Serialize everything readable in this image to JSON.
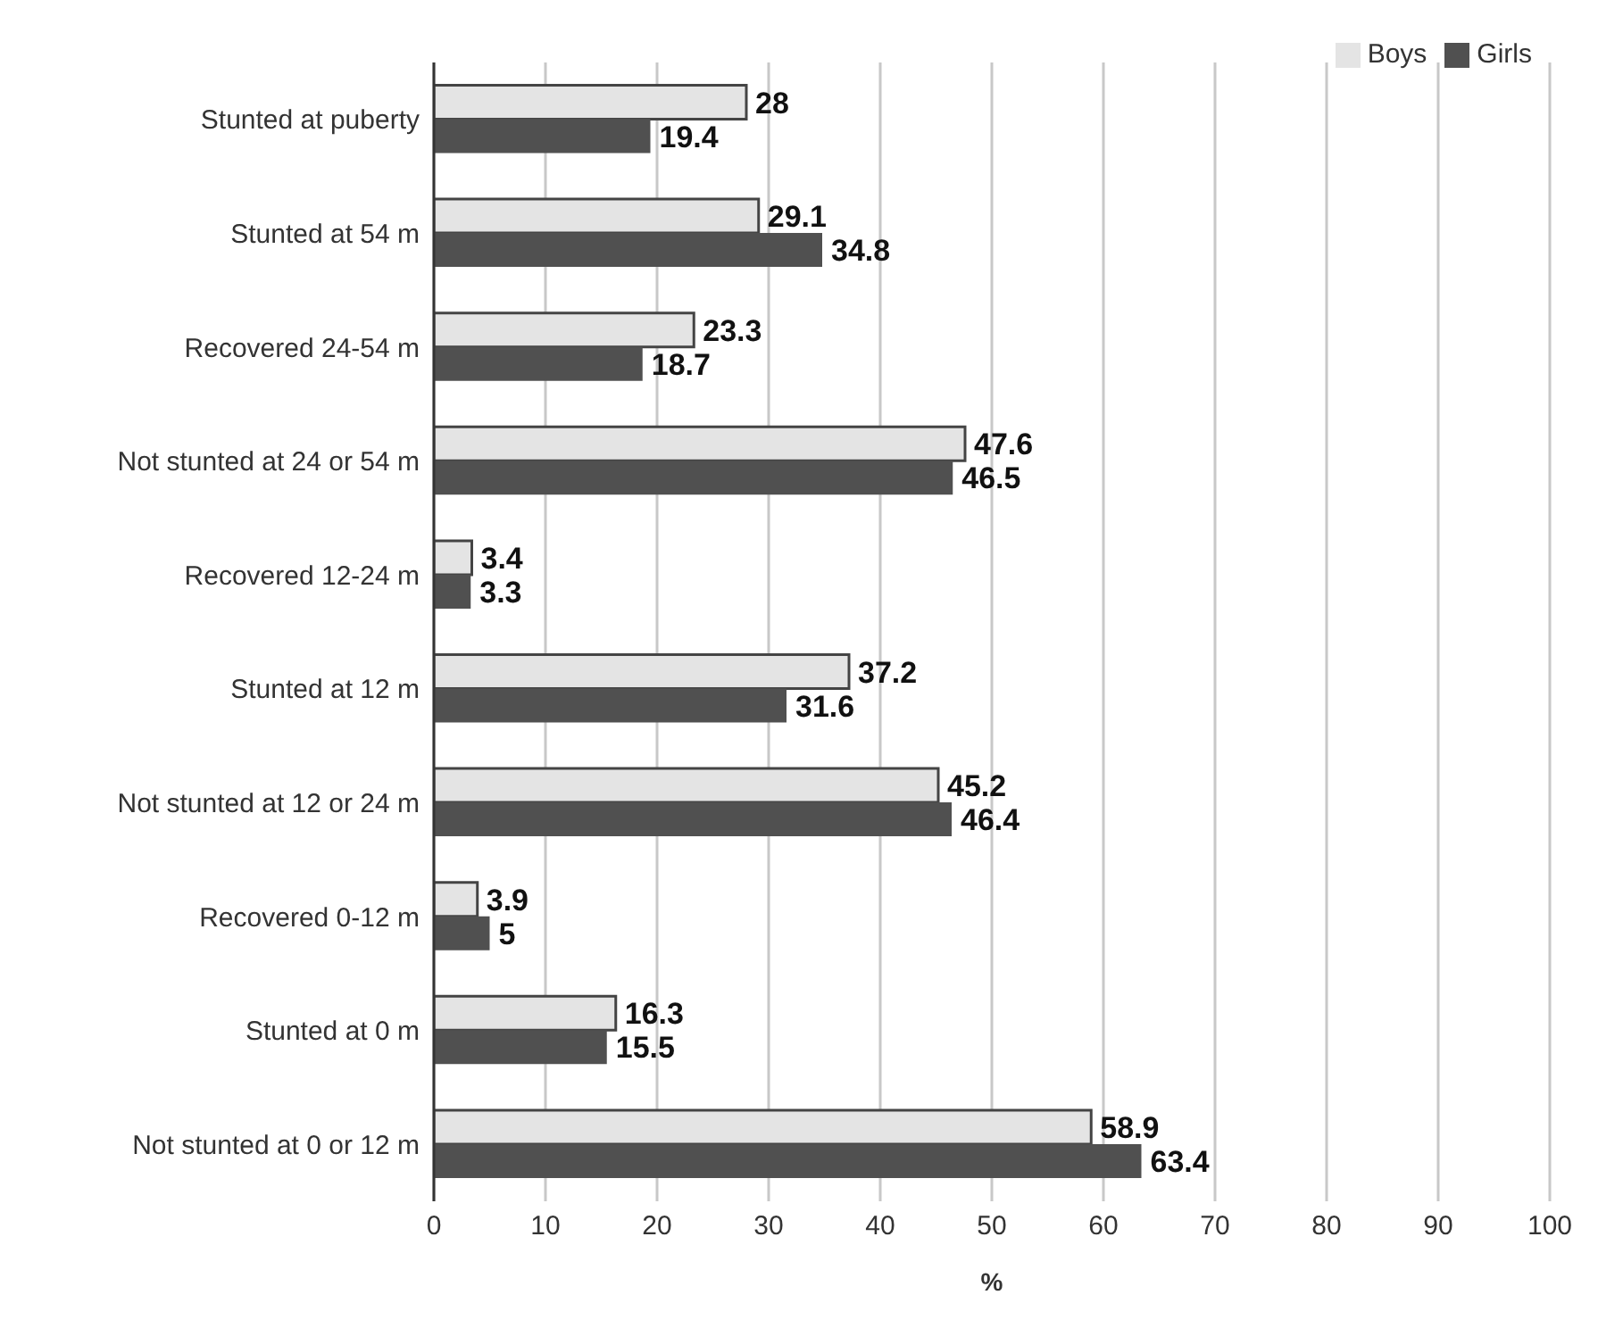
{
  "chart_data": {
    "type": "bar",
    "orientation": "horizontal",
    "xlabel": "%",
    "categories": [
      "Stunted at puberty",
      "Stunted at 54 m",
      "Recovered 24-54 m",
      "Not stunted at 24 or 54 m",
      "Recovered 12-24 m",
      "Stunted at 12 m",
      "Not stunted at 12 or 24 m",
      "Recovered 0-12 m",
      "Stunted at 0 m",
      "Not stunted at 0 or 12 m"
    ],
    "series": [
      {
        "name": "Boys",
        "color": "#e4e4e4",
        "values": [
          28,
          29.1,
          23.3,
          47.6,
          3.4,
          37.2,
          45.2,
          3.9,
          16.3,
          58.9
        ]
      },
      {
        "name": "Girls",
        "color": "#505050",
        "values": [
          19.4,
          34.8,
          18.7,
          46.5,
          3.3,
          31.6,
          46.4,
          5,
          15.5,
          63.4
        ]
      }
    ],
    "xlim": [
      0,
      100
    ],
    "xticks": [
      0,
      10,
      20,
      30,
      40,
      50,
      60,
      70,
      80,
      90,
      100
    ],
    "grid": "x",
    "legend": "top right",
    "data_labels": true
  }
}
